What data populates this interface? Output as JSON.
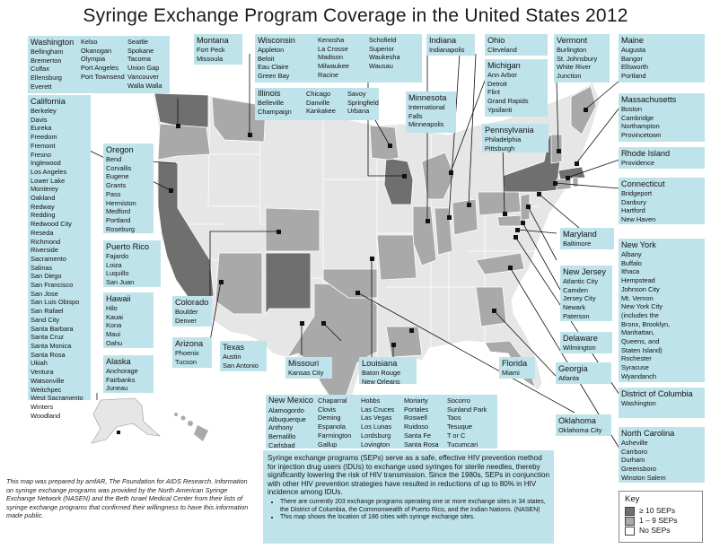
{
  "title": "Syringe Exchange Program Coverage in the United States 2012",
  "colors": {
    "box": "#bfe3ea",
    "high": "#6f6f6f",
    "mid": "#a9a9a9",
    "none": "#e6e6e6"
  },
  "states": {
    "washington": {
      "name": "Washington",
      "cols": [
        [
          "Bellingham",
          "Bremerton",
          "Colfax",
          "Ellensburg",
          "Everett"
        ],
        [
          "Kelso",
          "Okanogan",
          "Olympia",
          "Port Angeles",
          "Port Townsend"
        ],
        [
          "Seattle",
          "Spokane",
          "Tacoma",
          "Union Gap",
          "Vancouver",
          "Walla Walla"
        ]
      ]
    },
    "california": {
      "name": "California",
      "cities": [
        "Berkeley",
        "Davis",
        "Eureka",
        "Freedom",
        "Fremont",
        "Fresno",
        "Inglewood",
        "Los Angeles",
        "Lower Lake",
        "Monterey",
        "Oakland",
        "Redway",
        "Redding",
        "Redwood City",
        "Reseda",
        "Richmond",
        "Riverside",
        "Sacramento",
        "Salinas",
        "San Diego",
        "San Francisco",
        "San Jose",
        "San Luis Obispo",
        "San Rafael",
        "Sand City",
        "Santa Barbara",
        "Santa Cruz",
        "Santa Monica",
        "Santa Rosa",
        "Ukiah",
        "Ventura",
        "Watsonville",
        "Weitchpec",
        "West Sacramento",
        "Winters",
        "Woodland"
      ]
    },
    "oregon": {
      "name": "Oregon",
      "cities": [
        "Bend",
        "Corvallis",
        "Eugene",
        "Grants",
        "Pass",
        "Hermiston",
        "Medford",
        "Portland",
        "Roseburg"
      ]
    },
    "puerto_rico": {
      "name": "Puerto Rico",
      "cities": [
        "Fajardo",
        "Loiza",
        "Luquillo",
        "San Juan"
      ]
    },
    "hawaii": {
      "name": "Hawaii",
      "cities": [
        "Hilo",
        "Kauai",
        "Kona",
        "Maui",
        "Oahu"
      ]
    },
    "alaska": {
      "name": "Alaska",
      "cities": [
        "Anchorage",
        "Fairbanks",
        "Juneau"
      ]
    },
    "montana": {
      "name": "Montana",
      "cities": [
        "Fort Peck",
        "Missoula"
      ]
    },
    "wisconsin": {
      "name": "Wisconsin",
      "cols": [
        [
          "Appleton",
          "Beloit",
          "Eau Claire",
          "Green Bay"
        ],
        [
          "Kenosha",
          "La Crosse",
          "Madison",
          "Milwaukee",
          "Racine"
        ],
        [
          "Schofield",
          "Superior",
          "Waukesha",
          "Wausau"
        ]
      ]
    },
    "illinois": {
      "name": "Illinois",
      "cols": [
        [
          "Belleville",
          "Champaign"
        ],
        [
          "Chicago",
          "Danville",
          "Kankakee"
        ],
        [
          "Savoy",
          "Springfield",
          "Urbana"
        ]
      ]
    },
    "indiana": {
      "name": "Indiana",
      "cities": [
        "Indianapolis"
      ]
    },
    "ohio": {
      "name": "Ohio",
      "cities": [
        "Cleveland"
      ]
    },
    "michigan": {
      "name": "Michigan",
      "cities": [
        "Ann Arbor",
        "Detroit",
        "Flint",
        "Grand Rapids",
        "Ypsilanti"
      ]
    },
    "vermont": {
      "name": "Vermont",
      "cities": [
        "Burlington",
        "St. Johnsbury",
        "White River",
        "Junction"
      ]
    },
    "maine": {
      "name": "Maine",
      "cities": [
        "Augusta",
        "Bangor",
        "Ellsworth",
        "Portland"
      ]
    },
    "massachusetts": {
      "name": "Massachusetts",
      "cities": [
        "Boston",
        "Cambridge",
        "Northampton",
        "Provincetown"
      ]
    },
    "rhode_island": {
      "name": "Rhode Island",
      "cities": [
        "Providence"
      ]
    },
    "connecticut": {
      "name": "Connecticut",
      "cities": [
        "Bridgeport",
        "Danbury",
        "Hartford",
        "New Haven"
      ]
    },
    "minnesota": {
      "name": "Minnesota",
      "cities": [
        "International",
        "Falls",
        "Minneapolis"
      ]
    },
    "pennsylvania": {
      "name": "Pennsylvania",
      "cities": [
        "Philadelphia",
        "Pittsburgh"
      ]
    },
    "maryland": {
      "name": "Maryland",
      "cities": [
        "Baltimore"
      ]
    },
    "new_york": {
      "name": "New York",
      "cities": [
        "Albany",
        "Buffalo",
        "Ithaca",
        "Hempstead",
        "Johnson City",
        "Mt. Vernon",
        "New York City",
        "(includes the",
        "Bronx, Brooklyn,",
        "Manhattan,",
        "Queens, and",
        "Staten Island)",
        "Rochester",
        "Syracuse",
        "Wyandanch"
      ]
    },
    "new_jersey": {
      "name": "New Jersey",
      "cities": [
        "Atlantic City",
        "Camden",
        "Jersey City",
        "Newark",
        "Paterson"
      ]
    },
    "delaware": {
      "name": "Delaware",
      "cities": [
        "Wilmington"
      ]
    },
    "georgia": {
      "name": "Georgia",
      "cities": [
        "Atlanta"
      ]
    },
    "dc": {
      "name": "District of Columbia",
      "cities": [
        "Washington"
      ]
    },
    "north_carolina": {
      "name": "North Carolina",
      "cities": [
        "Asheville",
        "Carrboro",
        "Durham",
        "Greensboro",
        "Winston Salem"
      ]
    },
    "oklahoma": {
      "name": "Oklahoma",
      "cities": [
        "Oklahoma City"
      ]
    },
    "florida": {
      "name": "Florida",
      "cities": [
        "Miami"
      ]
    },
    "louisiana": {
      "name": "Louisiana",
      "cities": [
        "Baton Rouge",
        "New Orleans"
      ]
    },
    "missouri": {
      "name": "Missouri",
      "cities": [
        "Kansas City"
      ]
    },
    "texas": {
      "name": "Texas",
      "cities": [
        "Austin",
        "San Antonio"
      ]
    },
    "arizona": {
      "name": "Arizona",
      "cities": [
        "Phoenix",
        "Tucson"
      ]
    },
    "colorado": {
      "name": "Colorado",
      "cities": [
        "Boulder",
        "Denver"
      ]
    },
    "new_mexico": {
      "name": "New Mexico",
      "cols": [
        [
          "Alamogordo",
          "Albuquerque",
          "Anthony",
          "Bernalillo",
          "Carlsbad"
        ],
        [
          "Chaparral",
          "Clovis",
          "Deming",
          "Espanola",
          "Farmington",
          "Gallup"
        ],
        [
          "Hobbs",
          "Las Cruces",
          "Las Vegas",
          "Los Lunas",
          "Lordsburg",
          "Lovington"
        ],
        [
          "Moriarty",
          "Portales",
          "Roswell",
          "Ruidoso",
          "Santa Fe",
          "Santa Rosa"
        ],
        [
          "Socorro",
          "Sunland Park",
          "Taos",
          "Tesuque",
          "T or C",
          "Tucumcari"
        ]
      ]
    }
  },
  "description": {
    "paragraph": "Syringe exchange programs (SEPs) serve as a safe, effective HIV prevention method for injection drug users (IDUs) to exchange used syringes for sterile needles, thereby significantly lowering the risk of HIV transmission. Since the 1980s, SEPs in conjunction with other HIV prevention strategies have resulted in reductions of up to 80% in HIV incidence among IDUs.",
    "bullets": [
      "There are currently 203 exchange programs operating one or more exchange sites in 34 states, the District of Columbia, the Commonwealth of Puerto Rico, and the Indian Nations. (NASEN)",
      "This map shows the location of 186 cities with syringe exchange sites."
    ]
  },
  "credit": "This map was prepared by amfAR, The Foundation for AIDS Research. Information on syringe exchange programs was provided by the North American Syringe Exchange Network (NASEN) and the Beth Israel Medical Center from their lists of syringe exchange programs that confirmed their willingness to have this information made public.",
  "key": {
    "title": "Key",
    "items": [
      "≥ 10 SEPs",
      "1 – 9 SEPs",
      "No SEPs"
    ]
  }
}
